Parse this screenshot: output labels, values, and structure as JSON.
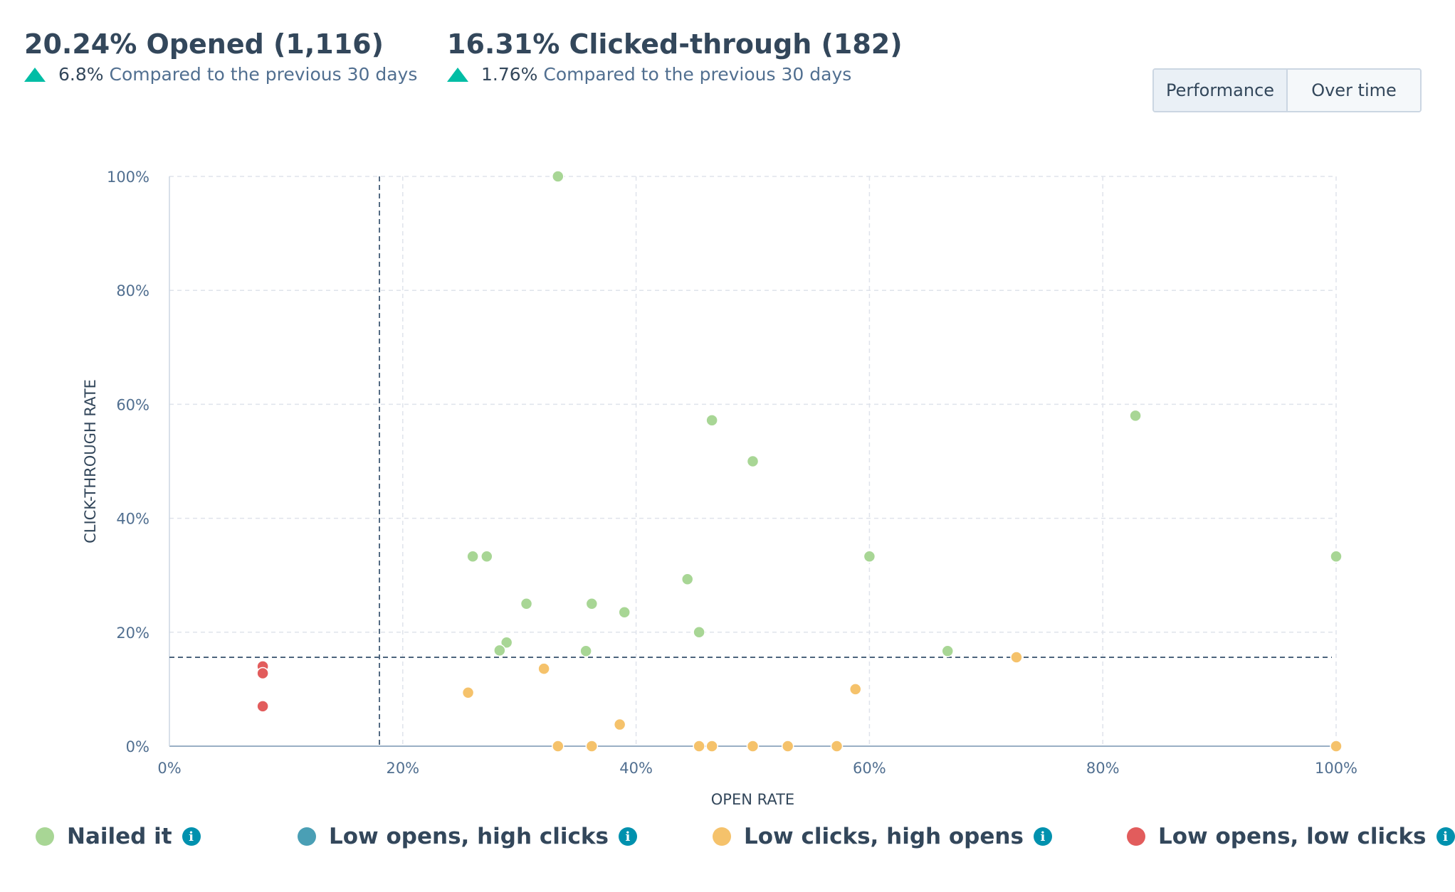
{
  "metrics": {
    "opened": {
      "title": "20.24% Opened (1,116)",
      "change": "6.8%",
      "compare": "Compared to the previous 30 days"
    },
    "clicked": {
      "title": "16.31% Clicked-through (182)",
      "change": "1.76%",
      "compare": "Compared to the previous 30 days"
    }
  },
  "toggle": {
    "performance": "Performance",
    "over_time": "Over time",
    "selected": "Performance"
  },
  "colors": {
    "nailed_it": "#a8d695",
    "low_opens_high_clicks": "#4a9fb5",
    "low_clicks_high_opens": "#f5c26b",
    "low_opens_low_clicks": "#e25c5c",
    "up_arrow": "#00bda5",
    "info": "#0091ae"
  },
  "chart_data": {
    "type": "scatter",
    "xlabel": "OPEN RATE",
    "ylabel": "CLICK-THROUGH RATE",
    "xlim": [
      0,
      100
    ],
    "ylim": [
      0,
      100
    ],
    "x_ticks": [
      "0%",
      "20%",
      "40%",
      "60%",
      "80%",
      "100%"
    ],
    "y_ticks": [
      "0%",
      "20%",
      "40%",
      "60%",
      "80%",
      "100%"
    ],
    "grid": true,
    "reference_lines": {
      "open_rate": 18.0,
      "click_through_rate": 15.6
    },
    "series": [
      {
        "name": "Nailed it",
        "color": "#a8d695",
        "points": [
          [
            33.3,
            100
          ],
          [
            46.5,
            57.2
          ],
          [
            50.0,
            50.0
          ],
          [
            82.8,
            58.0
          ],
          [
            60.0,
            33.3
          ],
          [
            100,
            33.3
          ],
          [
            26.0,
            33.3
          ],
          [
            27.2,
            33.3
          ],
          [
            44.4,
            29.3
          ],
          [
            30.6,
            25.0
          ],
          [
            36.2,
            25.0
          ],
          [
            39.0,
            23.5
          ],
          [
            45.4,
            20.0
          ],
          [
            28.9,
            18.2
          ],
          [
            28.3,
            16.8
          ],
          [
            35.7,
            16.7
          ],
          [
            66.7,
            16.7
          ]
        ]
      },
      {
        "name": "Low opens, high clicks",
        "color": "#4a9fb5",
        "points": []
      },
      {
        "name": "Low clicks, high opens",
        "color": "#f5c26b",
        "points": [
          [
            72.6,
            15.6
          ],
          [
            32.1,
            13.6
          ],
          [
            58.8,
            10.0
          ],
          [
            25.6,
            9.4
          ],
          [
            38.6,
            3.8
          ],
          [
            33.3,
            0
          ],
          [
            36.2,
            0
          ],
          [
            45.4,
            0
          ],
          [
            46.5,
            0
          ],
          [
            50.0,
            0
          ],
          [
            53.0,
            0
          ],
          [
            57.2,
            0
          ],
          [
            100,
            0
          ]
        ]
      },
      {
        "name": "Low opens, low clicks",
        "color": "#e25c5c",
        "points": [
          [
            8.0,
            14.0
          ],
          [
            8.0,
            12.8
          ],
          [
            8.0,
            7.0
          ]
        ]
      }
    ]
  },
  "legend": [
    {
      "label": "Nailed it"
    },
    {
      "label": "Low opens, high clicks"
    },
    {
      "label": "Low clicks, high opens"
    },
    {
      "label": "Low opens, low clicks"
    }
  ],
  "info_icon_glyph": "i"
}
